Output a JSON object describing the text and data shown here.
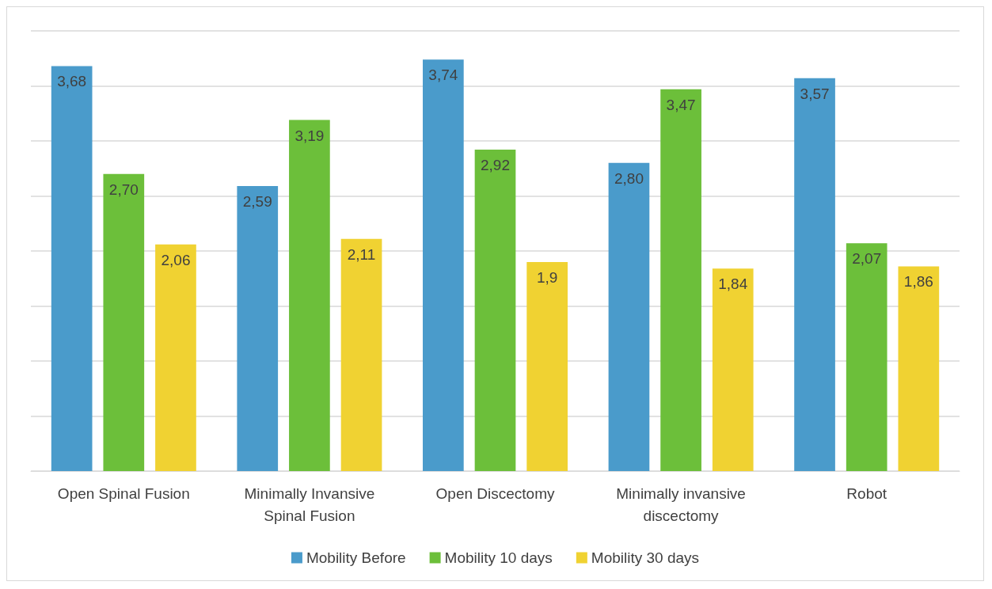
{
  "chart_data": {
    "type": "bar",
    "categories": [
      "Open Spinal Fusion",
      "Minimally Invansive\nSpinal Fusion",
      "Open Discectomy",
      "Minimally invansive\ndiscectomy",
      "Robot"
    ],
    "series": [
      {
        "name": "Mobility Before",
        "color": "#4a9bcb",
        "values": [
          3.68,
          2.59,
          3.74,
          2.8,
          3.57
        ],
        "value_labels": [
          "3,68",
          "2,59",
          "3,74",
          "2,80",
          "3,57"
        ]
      },
      {
        "name": "Mobility 10 days",
        "color": "#6cbf3a",
        "values": [
          2.7,
          3.19,
          2.92,
          3.47,
          2.07
        ],
        "value_labels": [
          "2,70",
          "3,19",
          "2,92",
          "3,47",
          "2,07"
        ]
      },
      {
        "name": "Mobility 30 days",
        "color": "#f0d232",
        "values": [
          2.06,
          2.11,
          1.9,
          1.84,
          1.86
        ],
        "value_labels": [
          "2,06",
          "2,11",
          "1,9",
          "1,84",
          "1,86"
        ]
      }
    ],
    "ylim": [
      0,
      4
    ],
    "yticks": [
      {
        "value": 0,
        "label": null
      },
      {
        "value": 0.5,
        "label": null
      },
      {
        "value": 1,
        "label": null
      },
      {
        "value": 1.5,
        "label": null
      },
      {
        "value": 2,
        "label": null
      },
      {
        "value": 2.5,
        "label": null
      },
      {
        "value": 3,
        "label": null
      },
      {
        "value": 3.5,
        "label": null
      },
      {
        "value": 4,
        "label": null
      }
    ],
    "tick_labels": "x",
    "grid": "y",
    "legend": "bottom"
  }
}
